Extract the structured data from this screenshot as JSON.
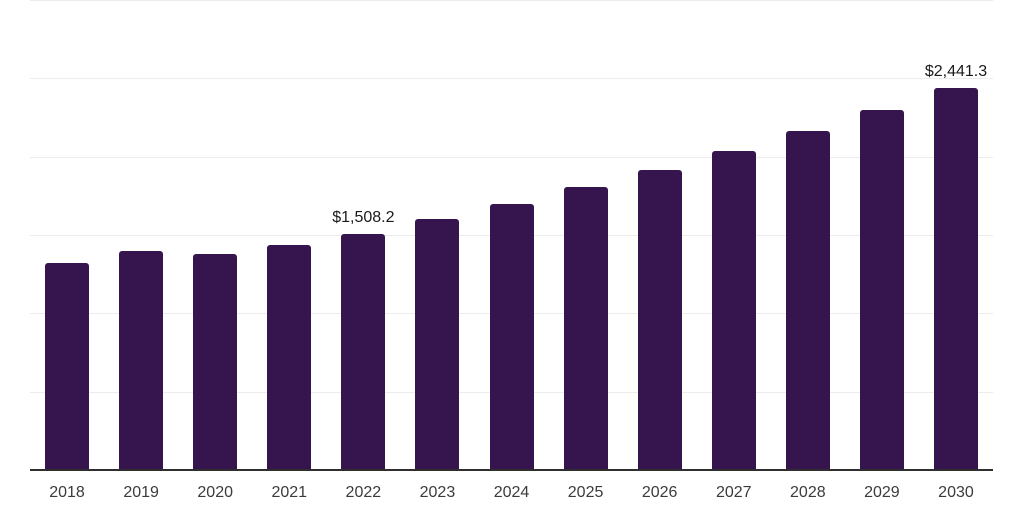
{
  "chart": {
    "background_color": "#ffffff",
    "bar_color": "#36154e",
    "gridline_color": "#ececec",
    "axis_line_color": "#2f2f2f",
    "tick_label_color": "#3b3b3b",
    "data_label_color": "#1a1a1a"
  },
  "chart_data": {
    "type": "bar",
    "title": "",
    "xlabel": "",
    "ylabel": "",
    "categories": [
      "2018",
      "2019",
      "2020",
      "2021",
      "2022",
      "2023",
      "2024",
      "2025",
      "2026",
      "2027",
      "2028",
      "2029",
      "2030"
    ],
    "values": [
      1320,
      1400,
      1381,
      1437,
      1508.2,
      1602,
      1700,
      1806,
      1915,
      2035,
      2162,
      2297,
      2441.3
    ],
    "data_labels": {
      "2022": "$1,508.2",
      "2030": "$2,441.3"
    },
    "ylim": [
      0,
      3000
    ],
    "gridline_step": 500,
    "grid": true,
    "legend": false,
    "y_axis_labels_visible": false,
    "single_series": true
  }
}
